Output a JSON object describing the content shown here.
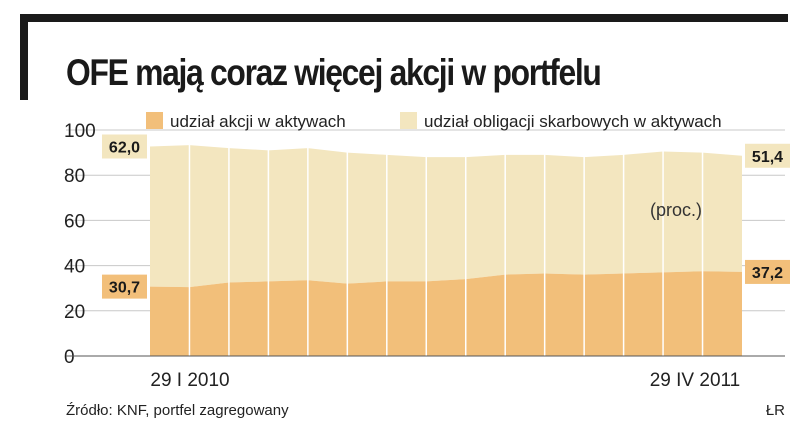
{
  "title": "OFE mają coraz więcej akcji w portfelu",
  "source": "Źródło: KNF, portfel zagregowany",
  "author": "ŁR",
  "colors": {
    "stocks": "#f2bf7a",
    "bonds": "#f3e6bf",
    "frame": "#1a1a1a",
    "grid": "#c8c8c8"
  },
  "chart_data": {
    "type": "area",
    "stacked": true,
    "unit_note": "(proc.)",
    "ylim": [
      0,
      100
    ],
    "yticks": [
      "100",
      "80",
      "60",
      "40",
      "20",
      "0"
    ],
    "xticks": [
      "29 I 2010",
      "29 IV 2011"
    ],
    "legend": [
      {
        "label": "udział akcji w aktywach",
        "color": "#f2bf7a"
      },
      {
        "label": "udział obligacji skarbowych w aktywach",
        "color": "#f3e6bf"
      }
    ],
    "series": [
      {
        "name": "udział akcji w aktywach",
        "values": [
          30.7,
          30.5,
          32.5,
          33.0,
          33.5,
          32.0,
          33.0,
          33.0,
          34.0,
          36.0,
          36.5,
          36.0,
          36.5,
          37.0,
          37.5,
          37.2
        ]
      },
      {
        "name": "udział obligacji skarbowych w aktywach",
        "values": [
          62.0,
          62.8,
          59.5,
          58.0,
          58.5,
          58.0,
          56.0,
          55.0,
          54.0,
          53.0,
          52.5,
          52.0,
          52.5,
          53.5,
          52.5,
          51.4
        ]
      }
    ],
    "data_labels": {
      "stocks_start": "30,7",
      "stocks_end": "37,2",
      "bonds_start": "62,0",
      "bonds_end": "51,4"
    }
  }
}
